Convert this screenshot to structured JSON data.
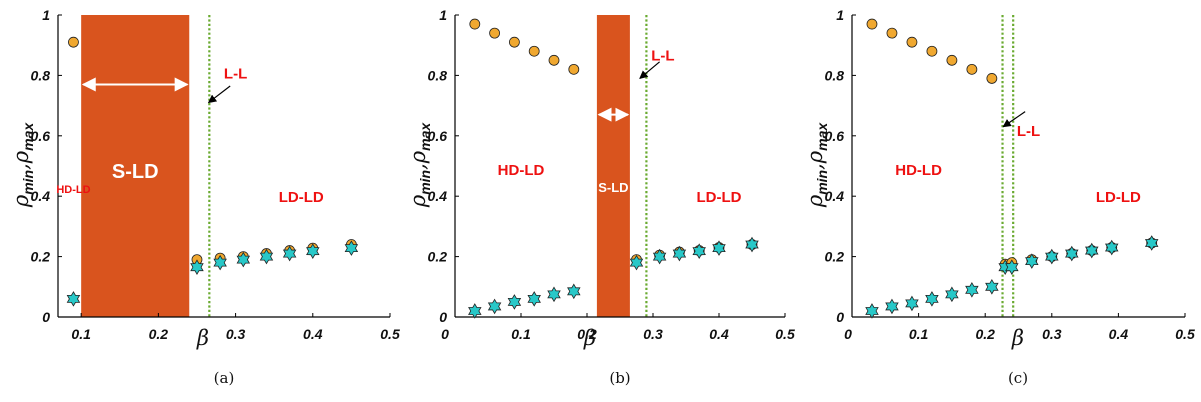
{
  "colors": {
    "accent_region": "#d9541e",
    "max_marker": "#f0a830",
    "min_marker": "#28c8c8",
    "vline": "#6aaa30",
    "label_red": "#ee1111",
    "axis": "#000000"
  },
  "icons": {
    "min_marker": "hexagram-star-icon",
    "max_marker": "circle-icon"
  },
  "chart_data": [
    {
      "type": "scatter",
      "panel": "a",
      "caption": "(a)",
      "xlabel": "β",
      "ylabel_main": "ρ",
      "ylabel_sub": "min",
      "ylabel_sep": ",ρ",
      "ylabel_sub2": "max",
      "xlim": [
        0.07,
        0.5
      ],
      "ylim": [
        0,
        1
      ],
      "xticks": [
        "0.1",
        "0.2",
        "0.3",
        "0.4",
        "0.5"
      ],
      "yticks": [
        "0",
        "0.2",
        "0.4",
        "0.6",
        "0.8",
        "1"
      ],
      "series": [
        {
          "marker": "circle",
          "points": [
            [
              0.09,
              0.91
            ],
            [
              0.25,
              0.19
            ],
            [
              0.28,
              0.195
            ],
            [
              0.31,
              0.2
            ],
            [
              0.34,
              0.21
            ],
            [
              0.37,
              0.22
            ],
            [
              0.4,
              0.228
            ],
            [
              0.45,
              0.24
            ]
          ]
        },
        {
          "marker": "star",
          "points": [
            [
              0.09,
              0.06
            ],
            [
              0.25,
              0.165
            ],
            [
              0.28,
              0.18
            ],
            [
              0.31,
              0.19
            ],
            [
              0.34,
              0.2
            ],
            [
              0.37,
              0.21
            ],
            [
              0.4,
              0.218
            ],
            [
              0.45,
              0.228
            ]
          ]
        }
      ],
      "shaded_region": {
        "x": [
          0.1,
          0.24
        ],
        "label": "S-LD"
      },
      "span_arrow": {
        "x": [
          0.1,
          0.24
        ],
        "y": 0.77
      },
      "vlines": [
        0.266
      ],
      "annotations": [
        {
          "text": "L-L",
          "x": 0.3,
          "y": 0.79,
          "size": "medium",
          "arrow_to": [
            0.265,
            0.71
          ],
          "arrow_from": [
            0.293,
            0.765
          ]
        },
        {
          "text": "HD-LD",
          "x": 0.09,
          "y": 0.41,
          "size": "small"
        },
        {
          "text": "LD-LD",
          "x": 0.385,
          "y": 0.38,
          "size": "medium"
        }
      ]
    },
    {
      "type": "scatter",
      "panel": "b",
      "caption": "(b)",
      "xlabel": "β",
      "ylabel_main": "ρ",
      "ylabel_sub": "min",
      "ylabel_sep": ",ρ",
      "ylabel_sub2": "max",
      "xlim": [
        0,
        0.5
      ],
      "ylim": [
        0,
        1
      ],
      "xticks": [
        "0.1",
        "0.2",
        "0.3",
        "0.4",
        "0.5"
      ],
      "yticks": [
        "0",
        "0.2",
        "0.4",
        "0.6",
        "0.8",
        "1"
      ],
      "series": [
        {
          "marker": "circle",
          "points": [
            [
              0.03,
              0.97
            ],
            [
              0.06,
              0.94
            ],
            [
              0.09,
              0.91
            ],
            [
              0.12,
              0.88
            ],
            [
              0.15,
              0.85
            ],
            [
              0.18,
              0.82
            ],
            [
              0.275,
              0.19
            ],
            [
              0.31,
              0.205
            ],
            [
              0.34,
              0.215
            ],
            [
              0.37,
              0.22
            ],
            [
              0.4,
              0.23
            ],
            [
              0.45,
              0.24
            ]
          ]
        },
        {
          "marker": "star",
          "points": [
            [
              0.03,
              0.02
            ],
            [
              0.06,
              0.035
            ],
            [
              0.09,
              0.05
            ],
            [
              0.12,
              0.06
            ],
            [
              0.15,
              0.075
            ],
            [
              0.18,
              0.085
            ],
            [
              0.275,
              0.18
            ],
            [
              0.31,
              0.2
            ],
            [
              0.34,
              0.21
            ],
            [
              0.37,
              0.218
            ],
            [
              0.4,
              0.228
            ],
            [
              0.45,
              0.24
            ]
          ]
        }
      ],
      "shaded_region": {
        "x": [
          0.215,
          0.265
        ],
        "label": "S-LD"
      },
      "span_arrow": {
        "x": [
          0.215,
          0.265
        ],
        "y": 0.67
      },
      "vlines": [
        0.29
      ],
      "annotations": [
        {
          "text": "L-L",
          "x": 0.315,
          "y": 0.85,
          "size": "medium",
          "arrow_to": [
            0.28,
            0.79
          ],
          "arrow_from": [
            0.31,
            0.845
          ]
        },
        {
          "text": "HD-LD",
          "x": 0.1,
          "y": 0.47,
          "size": "medium"
        },
        {
          "text": "LD-LD",
          "x": 0.4,
          "y": 0.38,
          "size": "medium"
        }
      ]
    },
    {
      "type": "scatter",
      "panel": "c",
      "caption": "(c)",
      "xlabel": "β",
      "ylabel_main": "ρ",
      "ylabel_sub": "min",
      "ylabel_sep": ",ρ",
      "ylabel_sub2": "max",
      "xlim": [
        0,
        0.5
      ],
      "ylim": [
        0,
        1
      ],
      "xticks": [
        "0.1",
        "0.2",
        "0.3",
        "0.4",
        "0.5"
      ],
      "yticks": [
        "0",
        "0.2",
        "0.4",
        "0.6",
        "0.8",
        "1"
      ],
      "series": [
        {
          "marker": "circle",
          "points": [
            [
              0.03,
              0.97
            ],
            [
              0.06,
              0.94
            ],
            [
              0.09,
              0.91
            ],
            [
              0.12,
              0.88
            ],
            [
              0.15,
              0.85
            ],
            [
              0.18,
              0.82
            ],
            [
              0.21,
              0.79
            ],
            [
              0.23,
              0.175
            ],
            [
              0.24,
              0.18
            ],
            [
              0.27,
              0.19
            ],
            [
              0.3,
              0.2
            ],
            [
              0.33,
              0.21
            ],
            [
              0.36,
              0.22
            ],
            [
              0.39,
              0.23
            ],
            [
              0.45,
              0.245
            ]
          ]
        },
        {
          "marker": "star",
          "points": [
            [
              0.03,
              0.02
            ],
            [
              0.06,
              0.035
            ],
            [
              0.09,
              0.045
            ],
            [
              0.12,
              0.06
            ],
            [
              0.15,
              0.075
            ],
            [
              0.18,
              0.09
            ],
            [
              0.21,
              0.1
            ],
            [
              0.23,
              0.165
            ],
            [
              0.24,
              0.165
            ],
            [
              0.27,
              0.185
            ],
            [
              0.3,
              0.2
            ],
            [
              0.33,
              0.21
            ],
            [
              0.36,
              0.22
            ],
            [
              0.39,
              0.23
            ],
            [
              0.45,
              0.245
            ]
          ]
        }
      ],
      "vlines": [
        0.226,
        0.242
      ],
      "annotations": [
        {
          "text": "L-L",
          "x": 0.265,
          "y": 0.6,
          "size": "medium",
          "arrow_to": [
            0.227,
            0.63
          ],
          "arrow_from": [
            0.26,
            0.68
          ]
        },
        {
          "text": "HD-LD",
          "x": 0.1,
          "y": 0.47,
          "size": "medium"
        },
        {
          "text": "LD-LD",
          "x": 0.4,
          "y": 0.38,
          "size": "medium"
        }
      ]
    }
  ]
}
